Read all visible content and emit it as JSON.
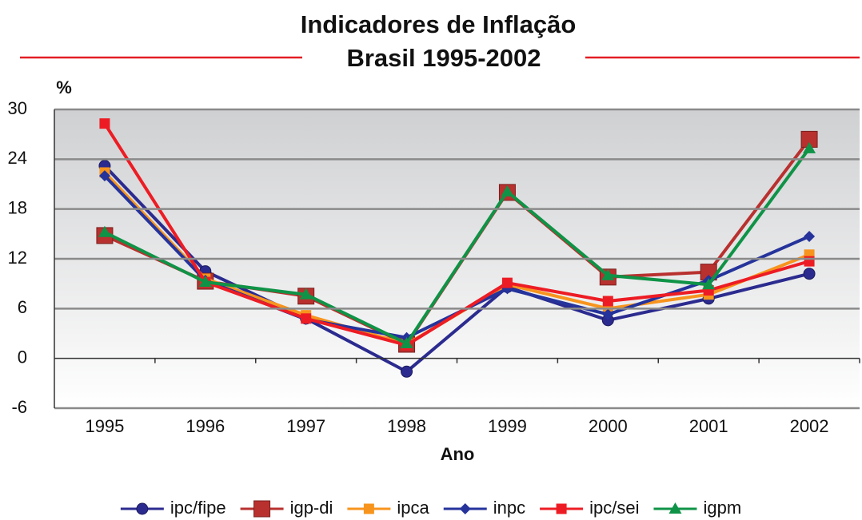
{
  "chart_data": {
    "type": "line",
    "title": "Indicadores de Inflação",
    "subtitle": "Brasil 1995-2002",
    "y_label": "%",
    "x_label": "Ano",
    "categories": [
      "1995",
      "1996",
      "1997",
      "1998",
      "1999",
      "2000",
      "2001",
      "2002"
    ],
    "series": [
      {
        "name": "ipc/fipe",
        "color": "#2b2b8f",
        "marker": "circle",
        "values": [
          23.2,
          10.5,
          4.8,
          -1.6,
          8.6,
          4.6,
          7.2,
          10.2
        ]
      },
      {
        "name": "igp-di",
        "color": "#b8312f",
        "marker": "big-square",
        "values": [
          14.8,
          9.3,
          7.5,
          1.7,
          20.0,
          9.8,
          10.4,
          26.4
        ]
      },
      {
        "name": "ipca",
        "color": "#f7941d",
        "marker": "square",
        "values": [
          22.4,
          9.6,
          5.2,
          1.7,
          8.9,
          6.0,
          7.7,
          12.5
        ]
      },
      {
        "name": "inpc",
        "color": "#25339b",
        "marker": "diamond",
        "values": [
          22.0,
          9.4,
          4.7,
          2.5,
          8.4,
          5.3,
          9.4,
          14.7
        ]
      },
      {
        "name": "ipc/sei",
        "color": "#ed1c24",
        "marker": "square",
        "values": [
          28.3,
          9.2,
          4.8,
          1.6,
          9.1,
          6.9,
          8.2,
          11.7
        ]
      },
      {
        "name": "igpm",
        "color": "#0f9347",
        "marker": "triangle",
        "values": [
          15.2,
          9.2,
          7.7,
          1.8,
          20.1,
          10.0,
          8.9,
          25.3
        ]
      }
    ],
    "ylim": [
      -6,
      30
    ],
    "yticks": [
      -6,
      0,
      6,
      12,
      18,
      24,
      30
    ],
    "grid": true
  }
}
